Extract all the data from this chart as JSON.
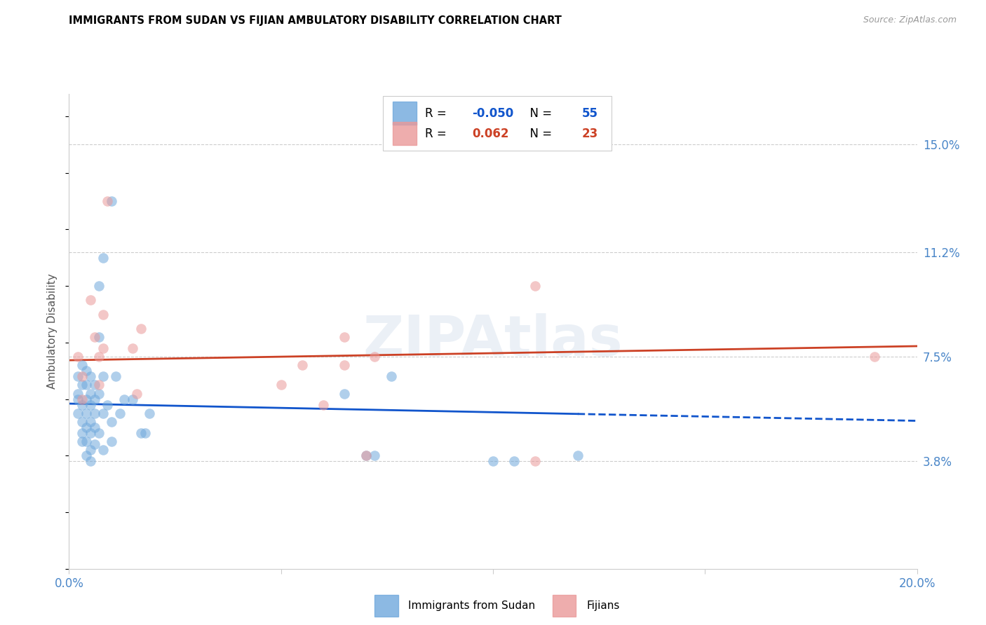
{
  "title": "IMMIGRANTS FROM SUDAN VS FIJIAN AMBULATORY DISABILITY CORRELATION CHART",
  "source": "Source: ZipAtlas.com",
  "ylabel": "Ambulatory Disability",
  "blue_label": "Immigrants from Sudan",
  "pink_label": "Fijians",
  "blue_R": -0.05,
  "blue_N": 55,
  "pink_R": 0.062,
  "pink_N": 23,
  "xlim": [
    0.0,
    0.2
  ],
  "ylim": [
    0.0,
    0.168
  ],
  "yticks": [
    0.038,
    0.075,
    0.112,
    0.15
  ],
  "ytick_labels": [
    "3.8%",
    "7.5%",
    "11.2%",
    "15.0%"
  ],
  "xticks": [
    0.0,
    0.05,
    0.1,
    0.15,
    0.2
  ],
  "xtick_labels": [
    "0.0%",
    "",
    "",
    "",
    "20.0%"
  ],
  "blue_color": "#6fa8dc",
  "pink_color": "#ea9999",
  "blue_line_color": "#1155cc",
  "pink_line_color": "#cc4125",
  "grid_color": "#cccccc",
  "axis_label_color": "#4a86c8",
  "blue_points": [
    [
      0.002,
      0.06
    ],
    [
      0.002,
      0.055
    ],
    [
      0.002,
      0.062
    ],
    [
      0.002,
      0.068
    ],
    [
      0.003,
      0.072
    ],
    [
      0.003,
      0.065
    ],
    [
      0.003,
      0.058
    ],
    [
      0.003,
      0.052
    ],
    [
      0.003,
      0.048
    ],
    [
      0.003,
      0.045
    ],
    [
      0.004,
      0.07
    ],
    [
      0.004,
      0.065
    ],
    [
      0.004,
      0.06
    ],
    [
      0.004,
      0.055
    ],
    [
      0.004,
      0.05
    ],
    [
      0.004,
      0.045
    ],
    [
      0.004,
      0.04
    ],
    [
      0.005,
      0.068
    ],
    [
      0.005,
      0.062
    ],
    [
      0.005,
      0.058
    ],
    [
      0.005,
      0.052
    ],
    [
      0.005,
      0.048
    ],
    [
      0.005,
      0.042
    ],
    [
      0.005,
      0.038
    ],
    [
      0.006,
      0.065
    ],
    [
      0.006,
      0.06
    ],
    [
      0.006,
      0.055
    ],
    [
      0.006,
      0.05
    ],
    [
      0.006,
      0.044
    ],
    [
      0.007,
      0.1
    ],
    [
      0.007,
      0.082
    ],
    [
      0.007,
      0.062
    ],
    [
      0.007,
      0.048
    ],
    [
      0.008,
      0.11
    ],
    [
      0.008,
      0.068
    ],
    [
      0.008,
      0.055
    ],
    [
      0.008,
      0.042
    ],
    [
      0.009,
      0.058
    ],
    [
      0.01,
      0.13
    ],
    [
      0.01,
      0.052
    ],
    [
      0.01,
      0.045
    ],
    [
      0.011,
      0.068
    ],
    [
      0.012,
      0.055
    ],
    [
      0.013,
      0.06
    ],
    [
      0.015,
      0.06
    ],
    [
      0.017,
      0.048
    ],
    [
      0.018,
      0.048
    ],
    [
      0.019,
      0.055
    ],
    [
      0.065,
      0.062
    ],
    [
      0.07,
      0.04
    ],
    [
      0.072,
      0.04
    ],
    [
      0.076,
      0.068
    ],
    [
      0.1,
      0.038
    ],
    [
      0.105,
      0.038
    ],
    [
      0.12,
      0.04
    ]
  ],
  "pink_points": [
    [
      0.002,
      0.075
    ],
    [
      0.003,
      0.068
    ],
    [
      0.003,
      0.06
    ],
    [
      0.005,
      0.095
    ],
    [
      0.006,
      0.082
    ],
    [
      0.007,
      0.075
    ],
    [
      0.007,
      0.065
    ],
    [
      0.008,
      0.09
    ],
    [
      0.008,
      0.078
    ],
    [
      0.009,
      0.13
    ],
    [
      0.015,
      0.078
    ],
    [
      0.016,
      0.062
    ],
    [
      0.017,
      0.085
    ],
    [
      0.05,
      0.065
    ],
    [
      0.055,
      0.072
    ],
    [
      0.06,
      0.058
    ],
    [
      0.065,
      0.082
    ],
    [
      0.065,
      0.072
    ],
    [
      0.07,
      0.04
    ],
    [
      0.072,
      0.075
    ],
    [
      0.11,
      0.1
    ],
    [
      0.11,
      0.038
    ],
    [
      0.19,
      0.075
    ]
  ],
  "figsize": [
    14.06,
    8.92
  ],
  "dpi": 100
}
